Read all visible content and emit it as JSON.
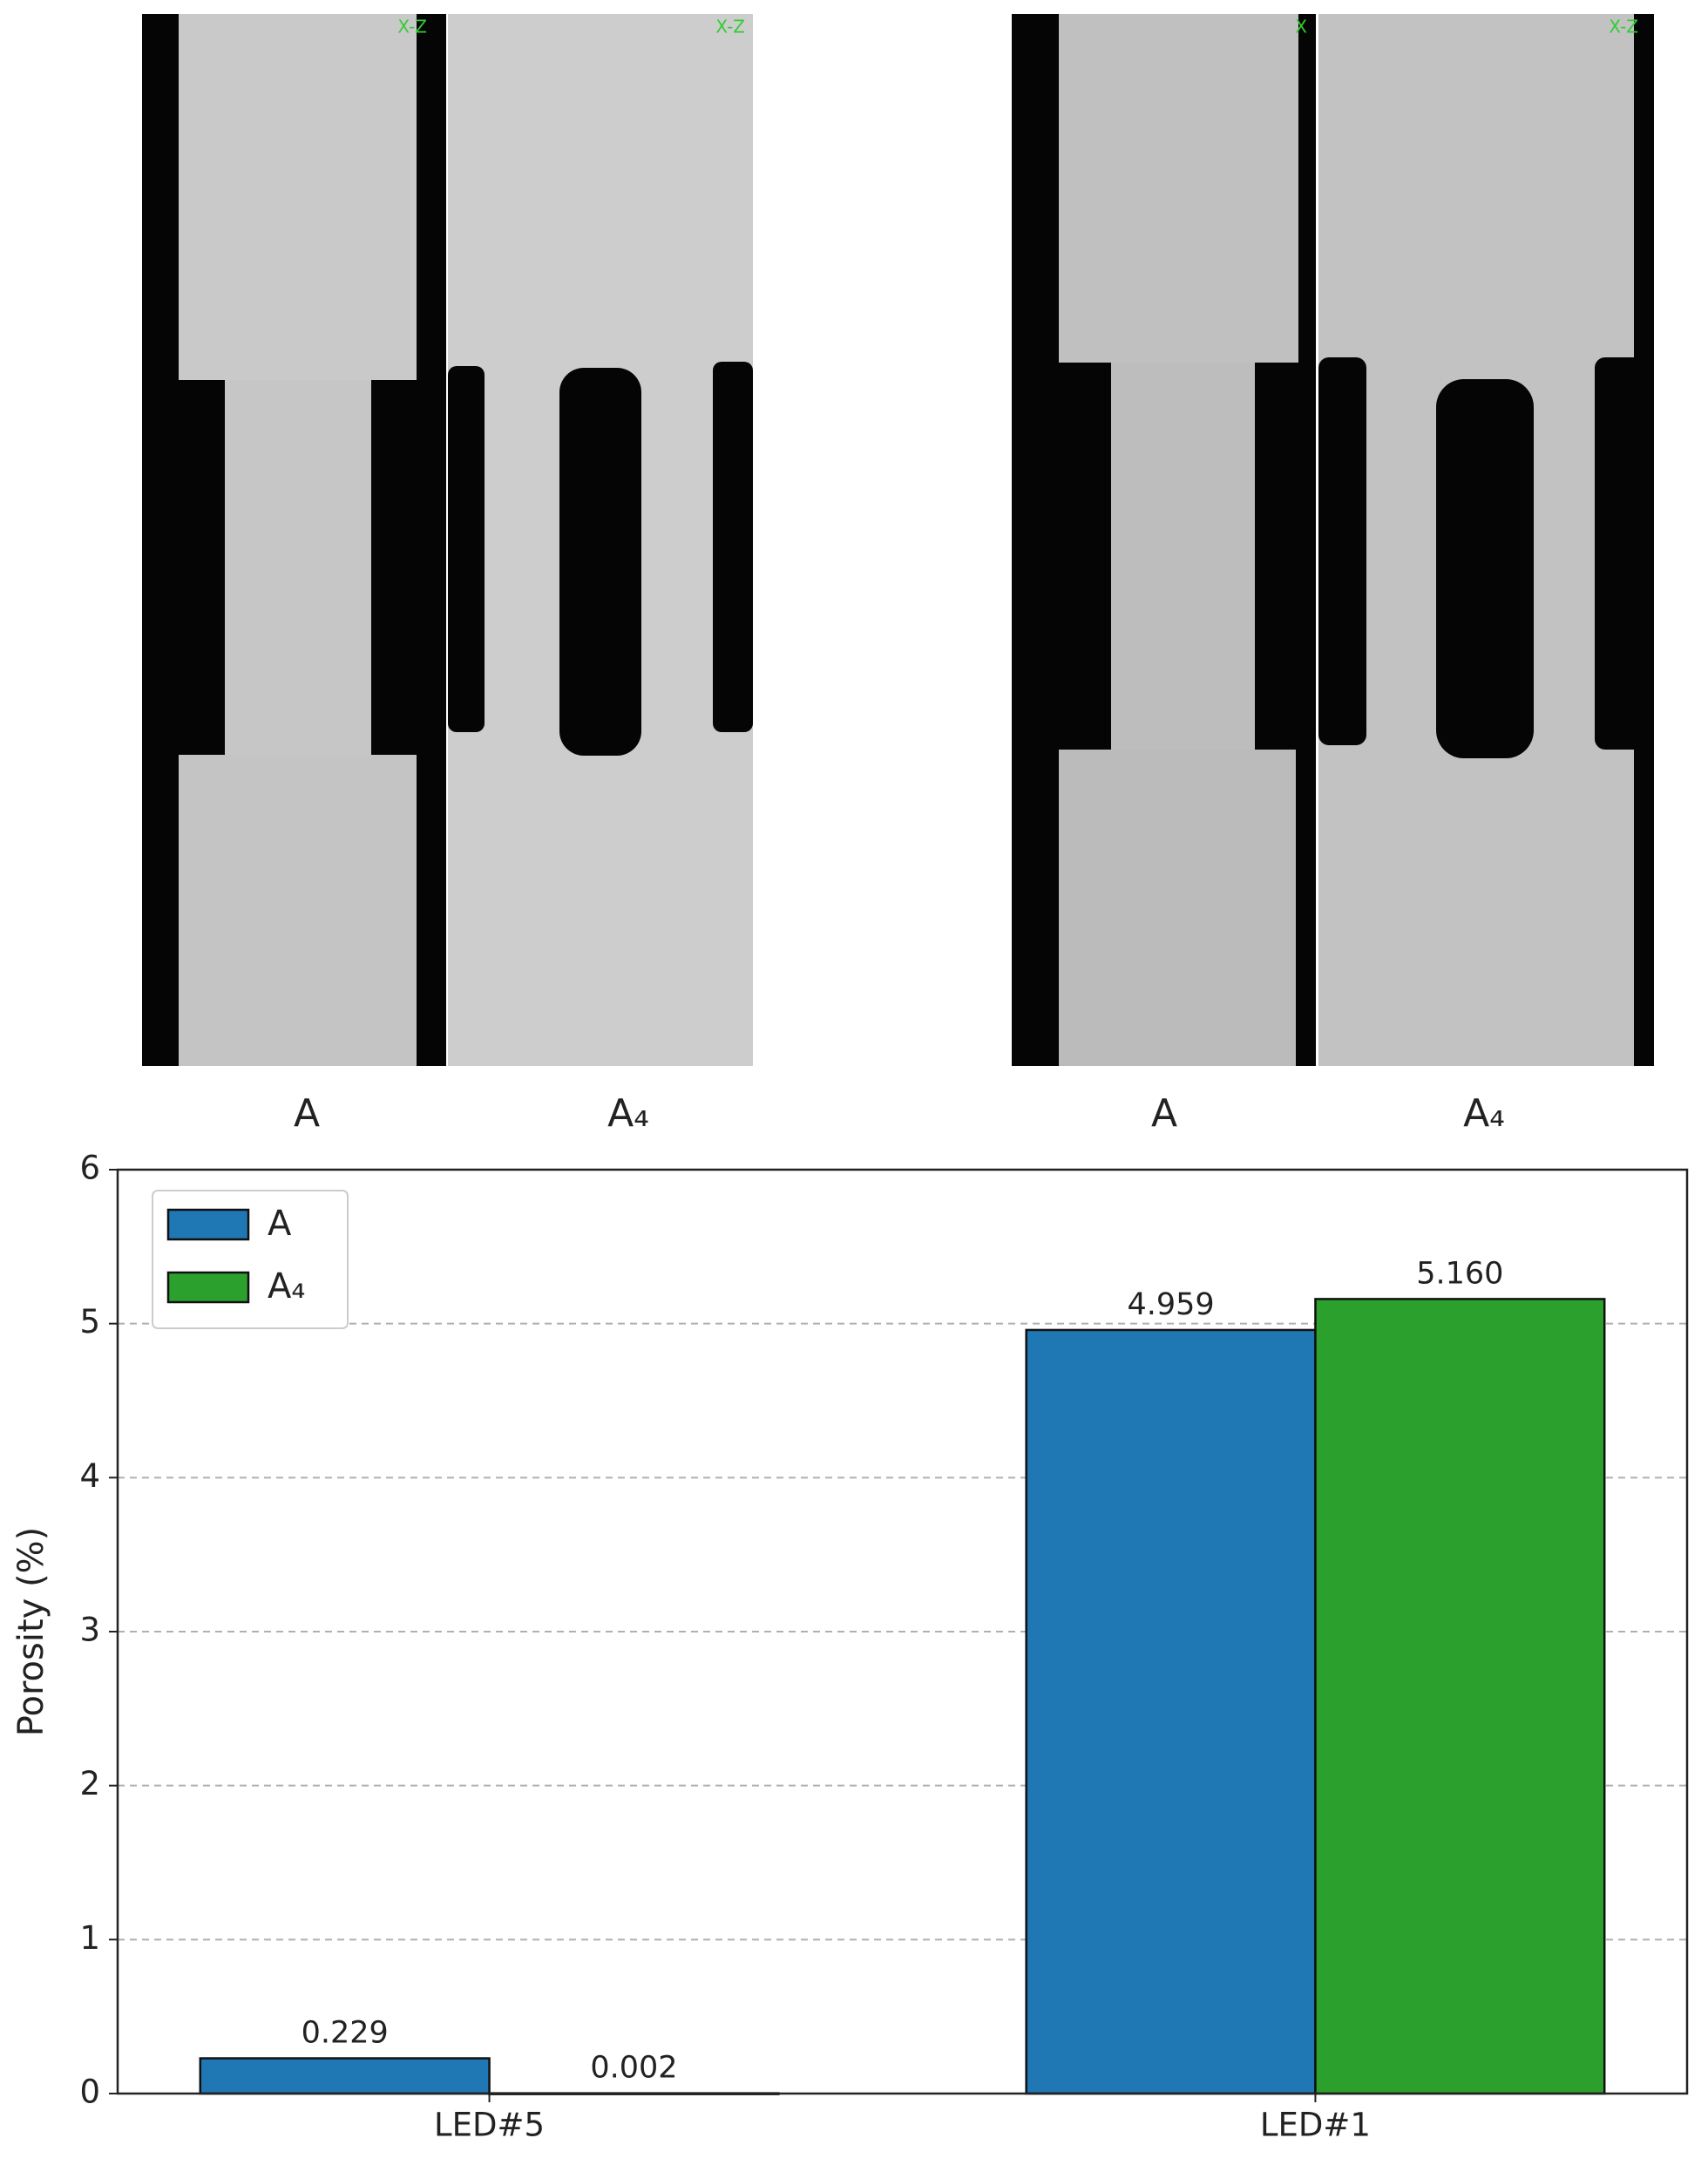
{
  "panel_labels": [
    "A",
    "A₄",
    "A",
    "A₄"
  ],
  "image_tags": [
    "X-Z",
    "X-Z",
    "X",
    "X-Z"
  ],
  "chart_data": {
    "type": "bar",
    "ylabel": "Porosity (%)",
    "categories": [
      "LED#5",
      "LED#1"
    ],
    "series": [
      {
        "name": "A",
        "color": "#1f77b4",
        "values": [
          0.229,
          4.959
        ],
        "value_labels": [
          "0.229",
          "4.959"
        ]
      },
      {
        "name": "A₄",
        "color": "#2ca02c",
        "values": [
          0.002,
          5.16
        ],
        "value_labels": [
          "0.002",
          "5.160"
        ]
      }
    ],
    "ylim": [
      0,
      6
    ],
    "yticks": [
      0,
      1,
      2,
      3,
      4,
      5,
      6
    ],
    "grid": true,
    "legend": "upper left"
  }
}
